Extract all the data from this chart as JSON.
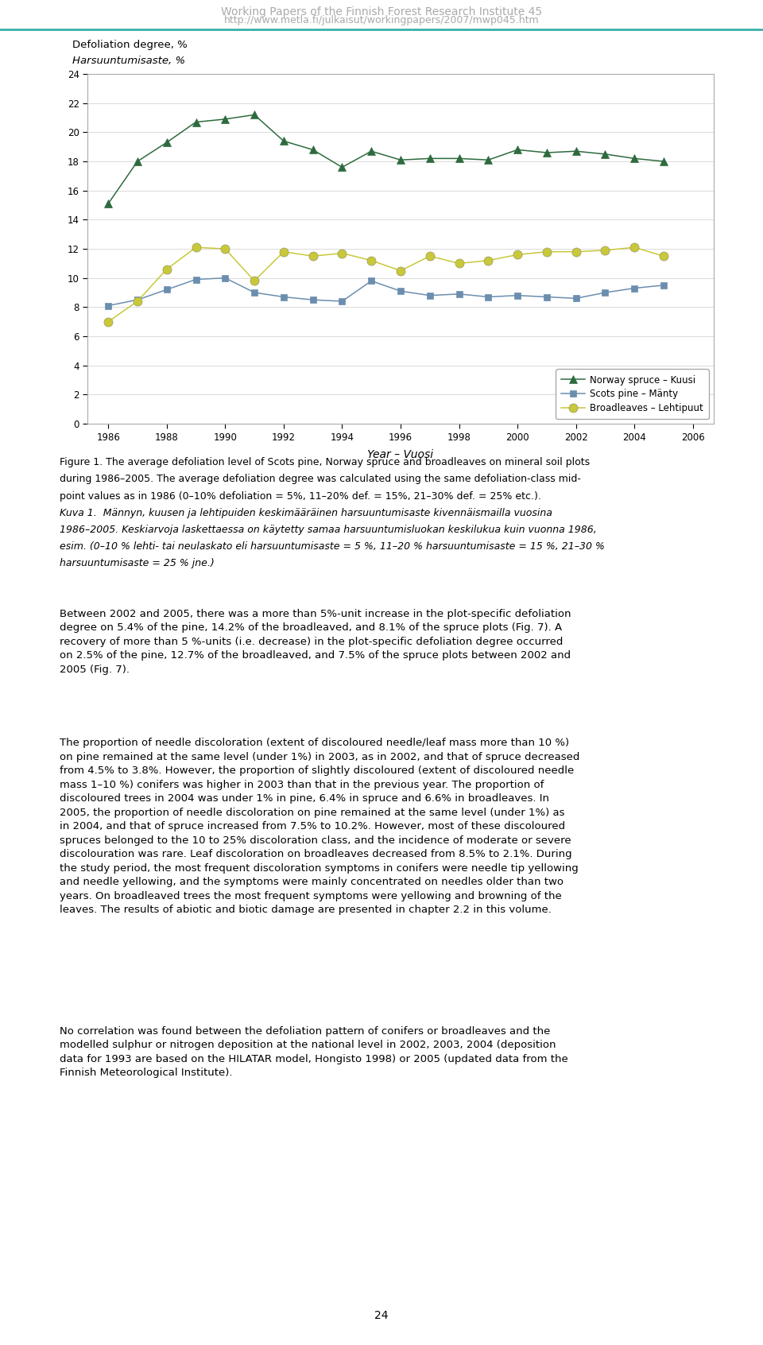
{
  "years": [
    1986,
    1987,
    1988,
    1989,
    1990,
    1991,
    1992,
    1993,
    1994,
    1995,
    1996,
    1997,
    1998,
    1999,
    2000,
    2001,
    2002,
    2003,
    2004,
    2005
  ],
  "norway_spruce": [
    15.1,
    18.0,
    19.3,
    20.7,
    20.9,
    21.2,
    19.4,
    18.8,
    17.6,
    18.7,
    18.1,
    18.2,
    18.2,
    18.1,
    18.8,
    18.6,
    18.7,
    18.5,
    18.2,
    18.0
  ],
  "scots_pine": [
    8.1,
    8.5,
    9.2,
    9.9,
    10.0,
    9.0,
    8.7,
    8.5,
    8.4,
    9.8,
    9.1,
    8.8,
    8.9,
    8.7,
    8.8,
    8.7,
    8.6,
    9.0,
    9.3,
    9.5
  ],
  "broadleaves": [
    7.0,
    8.4,
    10.6,
    12.1,
    12.0,
    9.8,
    11.8,
    11.5,
    11.7,
    11.2,
    10.5,
    11.5,
    11.0,
    11.2,
    11.6,
    11.8,
    11.8,
    11.9,
    12.1,
    11.5
  ],
  "spruce_color": "#2d6b3e",
  "pine_color": "#6b8eae",
  "broadleaves_color": "#c8c83a",
  "ylim": [
    0,
    24
  ],
  "yticks": [
    0,
    2,
    4,
    6,
    8,
    10,
    12,
    14,
    16,
    18,
    20,
    22,
    24
  ],
  "xticks": [
    1986,
    1988,
    1990,
    1992,
    1994,
    1996,
    1998,
    2000,
    2002,
    2004,
    2006
  ],
  "ylabel_line1": "Defoliation degree, %",
  "ylabel_line2": "Harsuuntumisaste, %",
  "xlabel": "Year – Vuosi",
  "legend_entries": [
    "Norway spruce – Kuusi",
    "Scots pine – Mänty",
    "Broadleaves – Lehtipuut"
  ],
  "header_line1": "Working Papers of the Finnish Forest Research Institute 45",
  "header_line2": "http://www.metla.fi/julkaisut/workingpapers/2007/mwp045.htm",
  "header_color": "#aaaaaa",
  "caption_line1": "Figure 1. The average defoliation level of Scots pine, Norway spruce and broadleaves on mineral soil plots",
  "caption_line2": "during 1986–2005. The average defoliation degree was calculated using the same defoliation-class mid-",
  "caption_line3": "point values as in 1986 (0–10% defoliation = 5%, 11–20% def. = 15%, 21–30% def. = 25% etc.).",
  "caption_line4": "Kuva 1.  Männyn, kuusen ja lehtipuiden keskimääräinen harsuuntumisaste kivennäismailla vuosina",
  "caption_line5": "1986–2005. Keskiarvoja laskettaessa on käytetty samaa harsuuntumisluokan keskilukua kuin vuonna 1986,",
  "caption_line6": "esim. (0–10 % lehti- tai neulaskato eli harsuuntumisaste = 5 %, 11–20 % harsuuntumisaste = 15 %, 21–30 %",
  "caption_line7": "harsuuntumisaste = 25 % jne.)",
  "para1": "Between 2002 and 2005, there was a more than 5%-unit increase in the plot-specific defoliation\ndegree on 5.4% of the pine, 14.2% of the broadleaved, and 8.1% of the spruce plots (Fig. 7). A\nrecovery of more than 5 %-units (i.e. decrease) in the plot-specific defoliation degree occurred\non 2.5% of the pine, 12.7% of the broadleaved, and 7.5% of the spruce plots between 2002 and\n2005 (Fig. 7).",
  "para2": "The proportion of needle discoloration (extent of discoloured needle/leaf mass more than 10 %)\non pine remained at the same level (under 1%) in 2003, as in 2002, and that of spruce decreased\nfrom 4.5% to 3.8%. However, the proportion of slightly discoloured (extent of discoloured needle\nmass 1–10 %) conifers was higher in 2003 than that in the previous year. The proportion of\ndiscoloured trees in 2004 was under 1% in pine, 6.4% in spruce and 6.6% in broadleaves. In\n2005, the proportion of needle discoloration on pine remained at the same level (under 1%) as\nin 2004, and that of spruce increased from 7.5% to 10.2%. However, most of these discoloured\nspruces belonged to the 10 to 25% discoloration class, and the incidence of moderate or severe\ndiscolouration was rare. Leaf discoloration on broadleaves decreased from 8.5% to 2.1%. During\nthe study period, the most frequent discoloration symptoms in conifers were needle tip yellowing\nand needle yellowing, and the symptoms were mainly concentrated on needles older than two\nyears. On broadleaved trees the most frequent symptoms were yellowing and browning of the\nleaves. The results of abiotic and biotic damage are presented in chapter 2.2 in this volume.",
  "para3": "No correlation was found between the defoliation pattern of conifers or broadleaves and the\nmodelled sulphur or nitrogen deposition at the national level in 2002, 2003, 2004 (deposition\ndata for 1993 are based on the HILATAR model, Hongisto 1998) or 2005 (updated data from the\nFinnish Meteorological Institute).",
  "page_number": "24"
}
